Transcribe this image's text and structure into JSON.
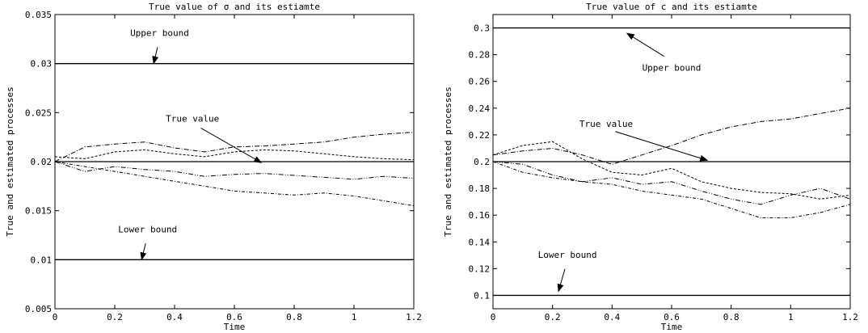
{
  "chart_data": [
    {
      "type": "line",
      "title": "True value of σ and its estiamte",
      "xlabel": "Time",
      "ylabel": "True and estimated processes",
      "xlim": [
        0,
        1.2
      ],
      "ylim": [
        0.005,
        0.035
      ],
      "xticks": [
        "0",
        "0.2",
        "0.4",
        "0.6",
        "0.8",
        "1",
        "1.2"
      ],
      "yticks": [
        "0.005",
        "0.01",
        "0.015",
        "0.02",
        "0.025",
        "0.03",
        "0.035"
      ],
      "grid": false,
      "reference_lines": [
        {
          "label": "Upper bound",
          "y": 0.03
        },
        {
          "label": "True value",
          "y": 0.02
        },
        {
          "label": "Lower bound",
          "y": 0.01
        }
      ],
      "annotations": [
        {
          "text": "Upper bound",
          "text_at": [
            0.35,
            0.0328
          ],
          "arrow_to": [
            0.33,
            0.03
          ]
        },
        {
          "text": "True value",
          "text_at": [
            0.46,
            0.0241
          ],
          "arrow_to": [
            0.69,
            0.0199
          ]
        },
        {
          "text": "Lower bound",
          "text_at": [
            0.31,
            0.0128
          ],
          "arrow_to": [
            0.29,
            0.01
          ]
        }
      ],
      "series": [
        {
          "x": [
            0,
            0.1,
            0.2,
            0.3,
            0.4,
            0.5,
            0.6,
            0.7,
            0.8,
            0.9,
            1.0,
            1.1,
            1.2
          ],
          "y": [
            0.02,
            0.0215,
            0.0218,
            0.022,
            0.0214,
            0.021,
            0.0215,
            0.0216,
            0.0218,
            0.022,
            0.0225,
            0.0228,
            0.023
          ]
        },
        {
          "x": [
            0,
            0.1,
            0.2,
            0.3,
            0.4,
            0.5,
            0.6,
            0.7,
            0.8,
            0.9,
            1.0,
            1.1,
            1.2
          ],
          "y": [
            0.0205,
            0.0203,
            0.021,
            0.0212,
            0.0208,
            0.0205,
            0.021,
            0.0212,
            0.0211,
            0.0208,
            0.0205,
            0.0203,
            0.0202
          ]
        },
        {
          "x": [
            0,
            0.1,
            0.2,
            0.3,
            0.4,
            0.5,
            0.6,
            0.7,
            0.8,
            0.9,
            1.0,
            1.1,
            1.2
          ],
          "y": [
            0.02,
            0.019,
            0.0195,
            0.0192,
            0.019,
            0.0185,
            0.0187,
            0.0188,
            0.0186,
            0.0184,
            0.0182,
            0.0185,
            0.0183
          ]
        },
        {
          "x": [
            0,
            0.1,
            0.2,
            0.3,
            0.4,
            0.5,
            0.6,
            0.7,
            0.8,
            0.9,
            1.0,
            1.1,
            1.2
          ],
          "y": [
            0.02,
            0.0195,
            0.019,
            0.0185,
            0.018,
            0.0175,
            0.017,
            0.0168,
            0.0166,
            0.0168,
            0.0165,
            0.016,
            0.0155
          ]
        }
      ]
    },
    {
      "type": "line",
      "title": "True value of c and its estiamte",
      "xlabel": "Time",
      "ylabel": "True and estimated processes",
      "xlim": [
        0,
        1.2
      ],
      "ylim": [
        0.09,
        0.31
      ],
      "xticks": [
        "0",
        "0.2",
        "0.4",
        "0.6",
        "0.8",
        "1",
        "1.2"
      ],
      "yticks": [
        "0.1",
        "0.12",
        "0.14",
        "0.16",
        "0.18",
        "0.2",
        "0.22",
        "0.24",
        "0.26",
        "0.28",
        "0.3"
      ],
      "grid": false,
      "reference_lines": [
        {
          "label": "Upper bound",
          "y": 0.3
        },
        {
          "label": "True value",
          "y": 0.2
        },
        {
          "label": "Lower bound",
          "y": 0.1
        }
      ],
      "annotations": [
        {
          "text": "Upper bound",
          "text_at": [
            0.6,
            0.268
          ],
          "arrow_to": [
            0.45,
            0.296
          ]
        },
        {
          "text": "True value",
          "text_at": [
            0.38,
            0.226
          ],
          "arrow_to": [
            0.72,
            0.201
          ]
        },
        {
          "text": "Lower bound",
          "text_at": [
            0.25,
            0.128
          ],
          "arrow_to": [
            0.22,
            0.103
          ]
        }
      ],
      "series": [
        {
          "x": [
            0,
            0.1,
            0.2,
            0.3,
            0.4,
            0.5,
            0.6,
            0.7,
            0.8,
            0.9,
            1.0,
            1.1,
            1.2
          ],
          "y": [
            0.205,
            0.208,
            0.21,
            0.205,
            0.198,
            0.205,
            0.212,
            0.22,
            0.226,
            0.23,
            0.232,
            0.236,
            0.24
          ]
        },
        {
          "x": [
            0,
            0.1,
            0.2,
            0.3,
            0.4,
            0.5,
            0.6,
            0.7,
            0.8,
            0.9,
            1.0,
            1.1,
            1.2
          ],
          "y": [
            0.205,
            0.212,
            0.215,
            0.202,
            0.192,
            0.19,
            0.195,
            0.185,
            0.18,
            0.177,
            0.176,
            0.172,
            0.175
          ]
        },
        {
          "x": [
            0,
            0.1,
            0.2,
            0.3,
            0.4,
            0.5,
            0.6,
            0.7,
            0.8,
            0.9,
            1.0,
            1.1,
            1.2
          ],
          "y": [
            0.2,
            0.198,
            0.19,
            0.185,
            0.188,
            0.183,
            0.185,
            0.178,
            0.172,
            0.168,
            0.175,
            0.18,
            0.172
          ]
        },
        {
          "x": [
            0,
            0.1,
            0.2,
            0.3,
            0.4,
            0.5,
            0.6,
            0.7,
            0.8,
            0.9,
            1.0,
            1.1,
            1.2
          ],
          "y": [
            0.2,
            0.192,
            0.188,
            0.185,
            0.183,
            0.178,
            0.175,
            0.172,
            0.165,
            0.158,
            0.158,
            0.162,
            0.168
          ]
        }
      ]
    }
  ]
}
